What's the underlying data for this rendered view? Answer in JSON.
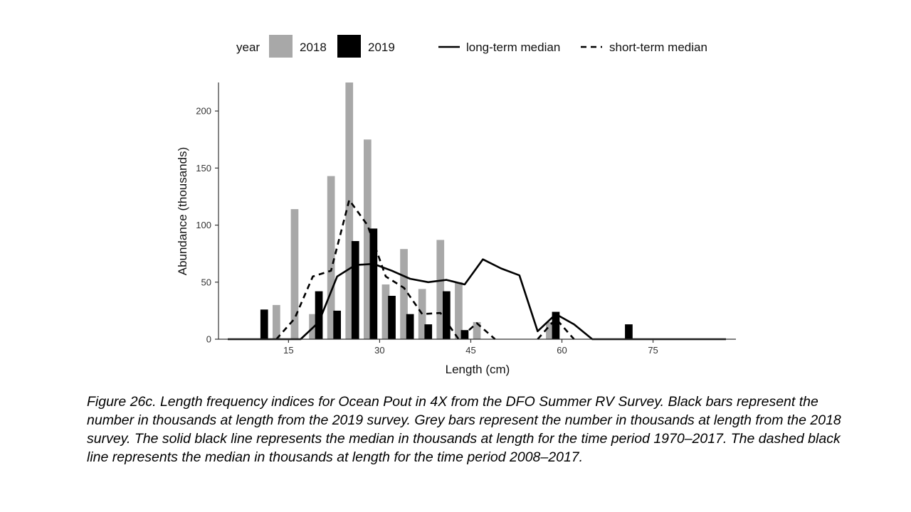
{
  "chart_data": {
    "type": "bar",
    "xlabel": "Length (cm)",
    "ylabel": "Abundance (thousands)",
    "xlim": [
      5,
      87
    ],
    "ylim": [
      0,
      225
    ],
    "xticks": [
      15,
      30,
      45,
      60,
      75
    ],
    "yticks": [
      0,
      50,
      100,
      150,
      200
    ],
    "grid": false,
    "legend": {
      "position": "top",
      "title": "year",
      "bar_series": [
        "2018",
        "2019"
      ],
      "line_series": [
        "long-term median",
        "short-term median"
      ]
    },
    "bar_width": 1.25,
    "series": [
      {
        "name": "2018",
        "kind": "bar",
        "color": "#a8a8a8",
        "x": [
          13,
          16,
          19,
          22,
          25,
          28,
          31,
          34,
          37,
          40,
          43,
          46,
          58
        ],
        "values": [
          30,
          114,
          22,
          143,
          225,
          175,
          48,
          79,
          44,
          87,
          50,
          15,
          15
        ]
      },
      {
        "name": "2019",
        "kind": "bar",
        "color": "#000000",
        "x": [
          11,
          20,
          23,
          26,
          29,
          32,
          35,
          38,
          41,
          44,
          59,
          71
        ],
        "values": [
          26,
          42,
          25,
          86,
          97,
          38,
          22,
          13,
          42,
          8,
          24,
          13
        ]
      },
      {
        "name": "long-term median",
        "kind": "line",
        "dash": "solid",
        "color": "#000000",
        "x": [
          5,
          17,
          20,
          23,
          26,
          29,
          32,
          35,
          38,
          41,
          44,
          47,
          50,
          53,
          56,
          59,
          62,
          65,
          87
        ],
        "values": [
          0,
          0,
          15,
          55,
          65,
          66,
          60,
          53,
          50,
          52,
          48,
          70,
          62,
          56,
          7,
          22,
          13,
          0,
          0
        ]
      },
      {
        "name": "short-term median",
        "kind": "line",
        "dash": "dashed",
        "color": "#000000",
        "segments": [
          {
            "x": [
              13,
              16,
              19,
              22,
              25,
              28,
              31,
              34,
              37,
              40,
              43,
              46,
              49
            ],
            "values": [
              0,
              18,
              55,
              60,
              122,
              100,
              55,
              45,
              22,
              23,
              0,
              14,
              0
            ]
          },
          {
            "x": [
              56,
              59,
              62
            ],
            "values": [
              0,
              18,
              0
            ]
          }
        ]
      }
    ]
  },
  "caption": "Figure 26c. Length frequency indices for Ocean Pout in 4X from the DFO Summer RV Survey. Black bars represent the number in thousands at length from the 2019 survey. Grey bars represent the number in thousands at length from the 2018 survey. The solid black line represents the median in thousands at length for the time period 1970–2017. The dashed black line represents the median in thousands at length for the time period 2008–2017."
}
